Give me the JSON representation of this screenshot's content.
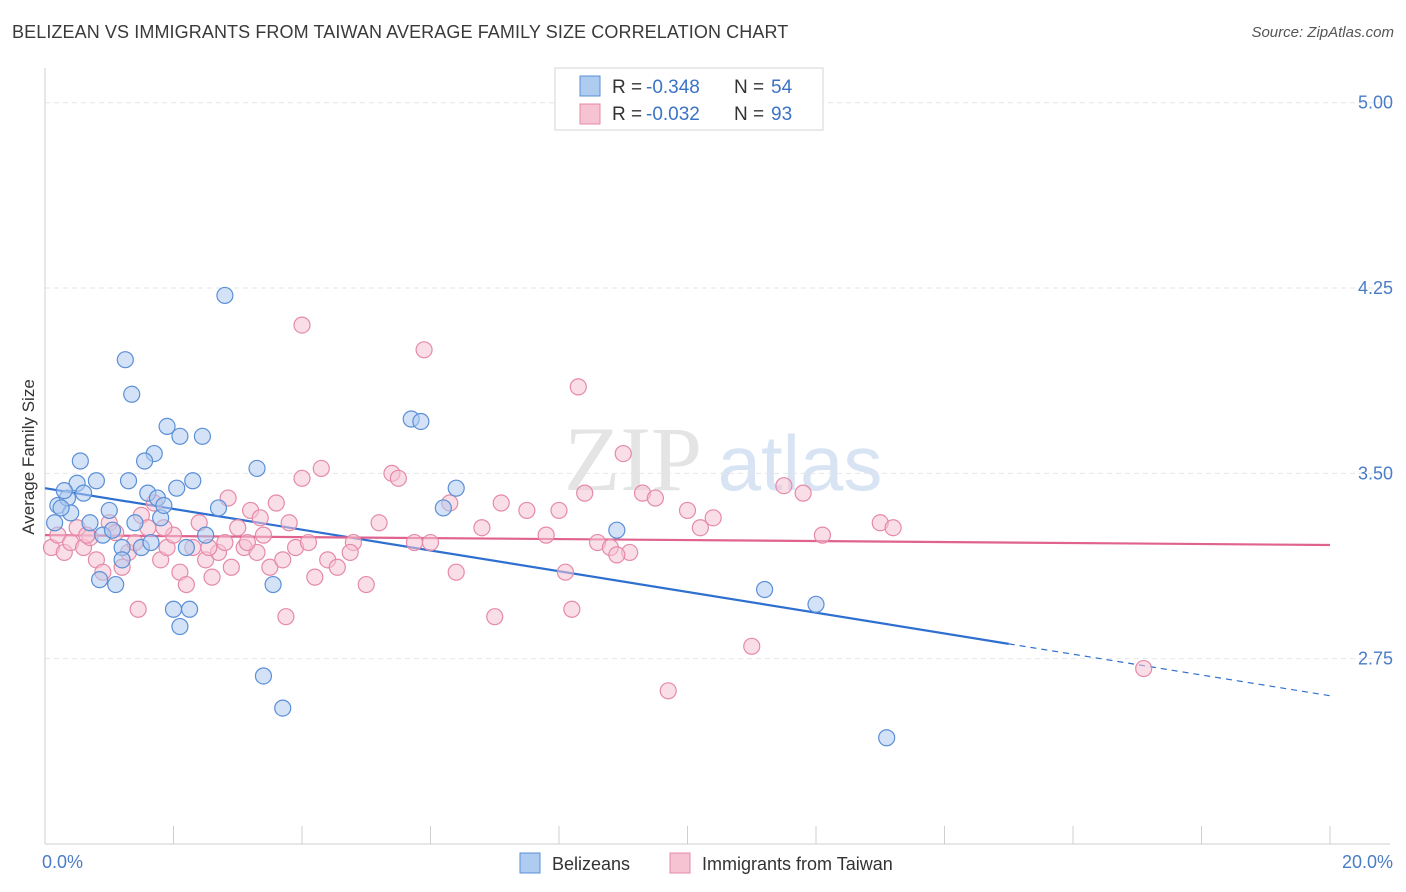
{
  "header": {
    "title": "BELIZEAN VS IMMIGRANTS FROM TAIWAN AVERAGE FAMILY SIZE CORRELATION CHART",
    "source": "Source: ZipAtlas.com"
  },
  "watermark": {
    "zip": "ZIP",
    "atlas": "atlas"
  },
  "colors": {
    "blue_fill": "#aecbf0",
    "blue_stroke": "#5b8fd6",
    "blue_line": "#2f6fd0",
    "pink_fill": "#f6c3d3",
    "pink_stroke": "#e58aa8",
    "pink_line": "#e0628e"
  },
  "legend": {
    "rows": [
      {
        "r_label": "R = ",
        "r_value": "-0.348",
        "n_label": "N = ",
        "n_value": "54"
      },
      {
        "r_label": "R = ",
        "r_value": "-0.032",
        "n_label": "N = ",
        "n_value": "93"
      }
    ]
  },
  "chart_data": {
    "type": "scatter",
    "title": "BELIZEAN VS IMMIGRANTS FROM TAIWAN AVERAGE FAMILY SIZE CORRELATION CHART",
    "xlabel": "",
    "ylabel": "Average Family Size",
    "xlim": [
      0,
      20
    ],
    "ylim": [
      2.0,
      5.1
    ],
    "x_tick_labels": [
      "0.0%",
      "20.0%"
    ],
    "y_ticks": [
      2.75,
      3.5,
      4.25,
      5.0
    ],
    "y_tick_labels": [
      "2.75",
      "3.50",
      "4.25",
      "5.00"
    ],
    "grid": true,
    "legend_position": "top-center",
    "series": [
      {
        "name": "Belizeans",
        "trend": {
          "x0": 0.0,
          "y0": 3.44,
          "x1": 15.0,
          "y1": 2.81,
          "dash_to_x": 20.0,
          "dash_to_y": 2.6
        },
        "points": [
          [
            0.2,
            3.37
          ],
          [
            0.35,
            3.4
          ],
          [
            0.5,
            3.46
          ],
          [
            0.3,
            3.43
          ],
          [
            0.15,
            3.3
          ],
          [
            0.4,
            3.34
          ],
          [
            0.6,
            3.42
          ],
          [
            0.25,
            3.36
          ],
          [
            0.55,
            3.55
          ],
          [
            0.7,
            3.3
          ],
          [
            0.9,
            3.25
          ],
          [
            1.0,
            3.35
          ],
          [
            0.8,
            3.47
          ],
          [
            1.2,
            3.2
          ],
          [
            1.3,
            3.47
          ],
          [
            1.5,
            3.2
          ],
          [
            1.6,
            3.42
          ],
          [
            1.4,
            3.3
          ],
          [
            1.1,
            3.05
          ],
          [
            1.8,
            3.32
          ],
          [
            1.35,
            3.82
          ],
          [
            1.25,
            3.96
          ],
          [
            1.7,
            3.58
          ],
          [
            1.9,
            3.69
          ],
          [
            2.1,
            3.65
          ],
          [
            1.75,
            3.4
          ],
          [
            2.05,
            3.44
          ],
          [
            2.3,
            3.47
          ],
          [
            2.45,
            3.65
          ],
          [
            2.5,
            3.25
          ],
          [
            2.7,
            3.36
          ],
          [
            2.8,
            4.22
          ],
          [
            1.55,
            3.55
          ],
          [
            1.2,
            3.15
          ],
          [
            0.85,
            3.07
          ],
          [
            1.05,
            3.27
          ],
          [
            1.65,
            3.22
          ],
          [
            1.85,
            3.37
          ],
          [
            2.0,
            2.95
          ],
          [
            2.25,
            2.95
          ],
          [
            2.1,
            2.88
          ],
          [
            2.2,
            3.2
          ],
          [
            3.3,
            3.52
          ],
          [
            3.4,
            2.68
          ],
          [
            3.55,
            3.05
          ],
          [
            3.7,
            2.55
          ],
          [
            5.7,
            3.72
          ],
          [
            5.85,
            3.71
          ],
          [
            6.4,
            3.44
          ],
          [
            6.2,
            3.36
          ],
          [
            8.9,
            3.27
          ],
          [
            11.2,
            3.03
          ],
          [
            12.0,
            2.97
          ],
          [
            13.1,
            2.43
          ]
        ]
      },
      {
        "name": "Immigrants from Taiwan",
        "trend": {
          "x0": 0.0,
          "y0": 3.25,
          "x1": 20.0,
          "y1": 3.21
        },
        "points": [
          [
            0.1,
            3.2
          ],
          [
            0.2,
            3.25
          ],
          [
            0.3,
            3.18
          ],
          [
            0.4,
            3.22
          ],
          [
            0.5,
            3.28
          ],
          [
            0.6,
            3.2
          ],
          [
            0.7,
            3.24
          ],
          [
            0.8,
            3.15
          ],
          [
            0.9,
            3.1
          ],
          [
            1.0,
            3.3
          ],
          [
            1.1,
            3.26
          ],
          [
            1.2,
            3.12
          ],
          [
            1.3,
            3.18
          ],
          [
            1.4,
            3.22
          ],
          [
            1.5,
            3.33
          ],
          [
            1.6,
            3.28
          ],
          [
            1.7,
            3.38
          ],
          [
            1.8,
            3.15
          ],
          [
            1.9,
            3.2
          ],
          [
            2.0,
            3.25
          ],
          [
            2.1,
            3.1
          ],
          [
            2.2,
            3.05
          ],
          [
            2.3,
            3.2
          ],
          [
            2.4,
            3.3
          ],
          [
            2.5,
            3.15
          ],
          [
            2.6,
            3.08
          ],
          [
            2.7,
            3.18
          ],
          [
            2.8,
            3.22
          ],
          [
            2.9,
            3.12
          ],
          [
            3.0,
            3.28
          ],
          [
            3.1,
            3.2
          ],
          [
            3.2,
            3.35
          ],
          [
            3.3,
            3.18
          ],
          [
            3.4,
            3.25
          ],
          [
            3.5,
            3.12
          ],
          [
            3.6,
            3.38
          ],
          [
            3.7,
            3.15
          ],
          [
            3.8,
            3.3
          ],
          [
            3.9,
            3.2
          ],
          [
            4.0,
            3.48
          ],
          [
            4.1,
            3.22
          ],
          [
            4.2,
            3.08
          ],
          [
            4.3,
            3.52
          ],
          [
            4.4,
            3.15
          ],
          [
            4.0,
            4.1
          ],
          [
            4.8,
            3.22
          ],
          [
            5.0,
            3.05
          ],
          [
            5.2,
            3.3
          ],
          [
            5.4,
            3.5
          ],
          [
            5.5,
            3.48
          ],
          [
            5.9,
            4.0
          ],
          [
            6.0,
            3.22
          ],
          [
            6.3,
            3.38
          ],
          [
            6.4,
            3.1
          ],
          [
            6.8,
            3.28
          ],
          [
            7.0,
            2.92
          ],
          [
            7.5,
            3.35
          ],
          [
            7.8,
            3.25
          ],
          [
            8.0,
            3.35
          ],
          [
            8.1,
            3.1
          ],
          [
            8.2,
            2.95
          ],
          [
            8.3,
            3.85
          ],
          [
            8.4,
            3.42
          ],
          [
            8.6,
            3.22
          ],
          [
            8.8,
            3.2
          ],
          [
            9.0,
            3.58
          ],
          [
            9.1,
            3.18
          ],
          [
            9.3,
            3.42
          ],
          [
            9.5,
            3.4
          ],
          [
            9.7,
            2.62
          ],
          [
            10.0,
            3.35
          ],
          [
            10.2,
            3.28
          ],
          [
            10.4,
            3.32
          ],
          [
            11.0,
            2.8
          ],
          [
            11.5,
            3.45
          ],
          [
            11.8,
            3.42
          ],
          [
            12.1,
            3.25
          ],
          [
            13.0,
            3.3
          ],
          [
            13.2,
            3.28
          ],
          [
            17.1,
            2.71
          ],
          [
            1.45,
            2.95
          ],
          [
            2.85,
            3.4
          ],
          [
            3.15,
            3.22
          ],
          [
            3.75,
            2.92
          ],
          [
            4.55,
            3.12
          ],
          [
            5.75,
            3.22
          ],
          [
            7.1,
            3.38
          ],
          [
            8.9,
            3.17
          ],
          [
            0.65,
            3.25
          ],
          [
            1.85,
            3.28
          ],
          [
            2.55,
            3.2
          ],
          [
            3.35,
            3.32
          ],
          [
            4.75,
            3.18
          ]
        ]
      }
    ]
  },
  "bottom_legend": {
    "items": [
      {
        "label": "Belizeans"
      },
      {
        "label": "Immigrants from Taiwan"
      }
    ]
  }
}
